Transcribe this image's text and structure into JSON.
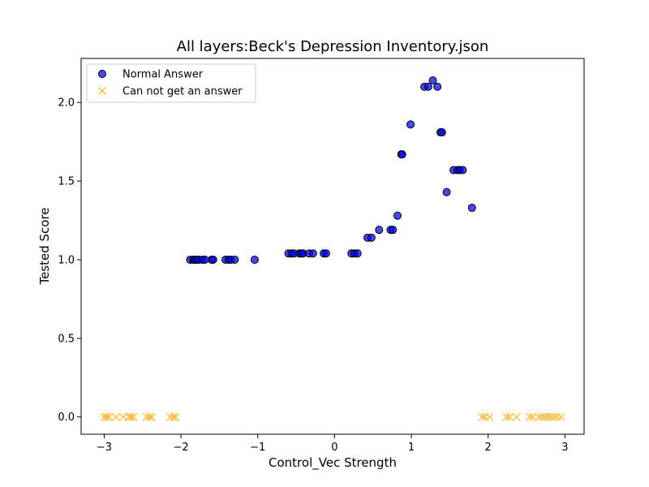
{
  "chart_data": {
    "type": "scatter",
    "title": "All layers:Beck's Depression Inventory.json",
    "xlabel": "Control_Vec Strength",
    "ylabel": "Tested Score",
    "xlim": [
      -3.3,
      3.25
    ],
    "ylim": [
      -0.11,
      2.28
    ],
    "x_ticks": [
      -3,
      -2,
      -1,
      0,
      1,
      2,
      3
    ],
    "x_tick_labels": [
      "−3",
      "−2",
      "−1",
      "0",
      "1",
      "2",
      "3"
    ],
    "y_ticks": [
      0.0,
      0.5,
      1.0,
      1.5,
      2.0
    ],
    "y_tick_labels": [
      "0.0",
      "0.5",
      "1.0",
      "1.5",
      "2.0"
    ],
    "grid": false,
    "legend_position": "top-left",
    "series": [
      {
        "name": "Normal Answer",
        "marker": "circle",
        "color": "#0000ff",
        "edge_color": "#000000",
        "x": [
          -1.88,
          -1.84,
          -1.82,
          -1.8,
          -1.77,
          -1.72,
          -1.69,
          -1.6,
          -1.58,
          -1.42,
          -1.38,
          -1.35,
          -1.3,
          -1.04,
          -0.6,
          -0.56,
          -0.53,
          -0.46,
          -0.43,
          -0.41,
          -0.33,
          -0.28,
          -0.14,
          -0.11,
          0.22,
          0.26,
          0.3,
          0.43,
          0.48,
          0.58,
          0.73,
          0.76,
          0.82,
          0.87,
          0.88,
          0.99,
          1.17,
          1.22,
          1.28,
          1.34,
          1.38,
          1.4,
          1.46,
          1.55,
          1.6,
          1.63,
          1.67,
          1.79
        ],
        "y": [
          1.0,
          1.0,
          1.0,
          1.0,
          1.0,
          1.0,
          1.0,
          1.0,
          1.0,
          1.0,
          1.0,
          1.0,
          1.0,
          1.0,
          1.04,
          1.04,
          1.04,
          1.04,
          1.04,
          1.04,
          1.04,
          1.04,
          1.04,
          1.04,
          1.04,
          1.04,
          1.04,
          1.14,
          1.14,
          1.19,
          1.19,
          1.19,
          1.28,
          1.67,
          1.67,
          1.86,
          2.1,
          2.1,
          2.14,
          2.1,
          1.81,
          1.81,
          1.43,
          1.57,
          1.57,
          1.57,
          1.57,
          1.33
        ]
      },
      {
        "name": "Can not get an answer",
        "marker": "x",
        "color": "#ffa500",
        "x": [
          -3.0,
          -2.97,
          -2.94,
          -2.85,
          -2.75,
          -2.68,
          -2.65,
          -2.62,
          -2.45,
          -2.41,
          -2.38,
          -2.14,
          -2.1,
          -2.07,
          1.92,
          1.96,
          2.02,
          2.24,
          2.28,
          2.37,
          2.54,
          2.58,
          2.66,
          2.7,
          2.74,
          2.78,
          2.82,
          2.86,
          2.9,
          2.95
        ],
        "y": [
          0,
          0,
          0,
          0,
          0,
          0,
          0,
          0,
          0,
          0,
          0,
          0,
          0,
          0,
          0,
          0,
          0,
          0,
          0,
          0,
          0,
          0,
          0,
          0,
          0,
          0,
          0,
          0,
          0,
          0
        ]
      }
    ]
  }
}
